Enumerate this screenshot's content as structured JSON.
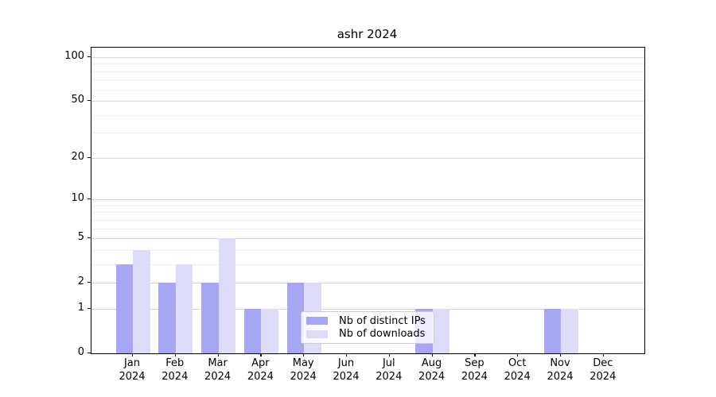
{
  "title": "ashr 2024",
  "colors": {
    "series_distinct_ips": "#a6a6f2",
    "series_downloads": "#dcdcf8",
    "grid_major": "#d4d4d4",
    "grid_minor": "#ededed",
    "axis": "#000000",
    "legend_border": "#cccccc",
    "background": "#ffffff"
  },
  "chart_data": {
    "type": "bar",
    "title": "ashr 2024",
    "y_scale": "log1p",
    "grid": true,
    "categories": [
      "Jan",
      "Feb",
      "Mar",
      "Apr",
      "May",
      "Jun",
      "Jul",
      "Aug",
      "Sep",
      "Oct",
      "Nov",
      "Dec"
    ],
    "category_year": "2024",
    "series": [
      {
        "name": "Nb of distinct IPs",
        "color": "#a6a6f2",
        "values": [
          3,
          2,
          2,
          1,
          2,
          0,
          0,
          1,
          0,
          0,
          1,
          0
        ]
      },
      {
        "name": "Nb of downloads",
        "color": "#dcdcf8",
        "values": [
          4,
          3,
          5,
          1,
          2,
          0,
          0,
          1,
          0,
          0,
          1,
          0
        ]
      }
    ],
    "y_major_ticks": [
      0,
      1,
      2,
      5,
      10,
      20,
      50,
      100
    ],
    "y_minor_ticks": [
      3,
      4,
      6,
      7,
      8,
      9,
      30,
      40,
      60,
      70,
      80,
      90
    ],
    "ylim": [
      0,
      116
    ],
    "xlabel": "",
    "ylabel": "",
    "legend_position": "lower center"
  }
}
